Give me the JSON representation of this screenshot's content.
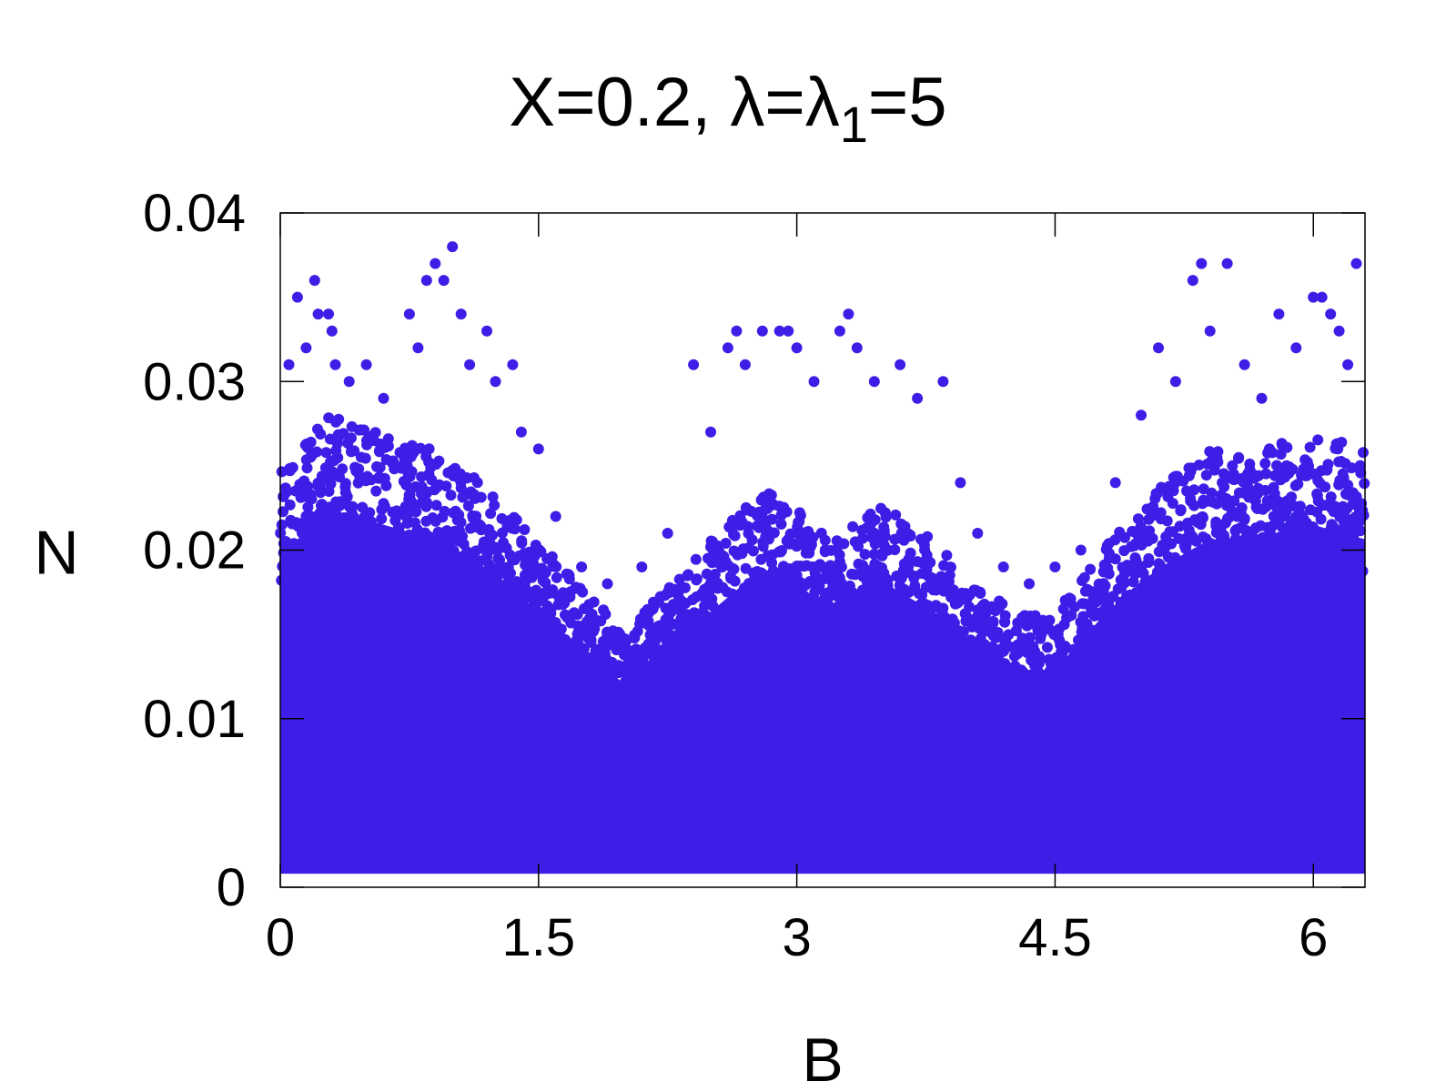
{
  "chart_data": {
    "type": "scatter",
    "title": {
      "prefix": "X=0.2, λ=λ",
      "subscript": "1",
      "suffix": "=5"
    },
    "xlabel": "B",
    "ylabel": "N",
    "xlim": [
      0,
      6.3
    ],
    "ylim": [
      0,
      0.04
    ],
    "xticks": [
      0,
      1.5,
      3,
      4.5,
      6
    ],
    "xtick_labels": [
      "0",
      "1.5",
      "3",
      "4.5",
      "6"
    ],
    "yticks": [
      0,
      0.01,
      0.02,
      0.03,
      0.04
    ],
    "ytick_labels": [
      "0",
      "0.01",
      "0.02",
      "0.03",
      "0.04"
    ],
    "grid": false,
    "legend": "none",
    "marker_color": "#3c1ee6",
    "series": [
      {
        "dense_envelope": {
          "x": [
            0,
            0.3,
            0.6,
            0.9,
            1.2,
            1.5,
            1.8,
            2.0,
            2.2,
            2.5,
            2.8,
            3.0,
            3.2,
            3.5,
            3.8,
            4.0,
            4.3,
            4.5,
            4.8,
            5.1,
            5.4,
            5.7,
            6.0,
            6.3
          ],
          "y_min": 0.0008,
          "y_max": [
            0.023,
            0.026,
            0.025,
            0.024,
            0.022,
            0.019,
            0.016,
            0.014,
            0.016,
            0.019,
            0.022,
            0.021,
            0.019,
            0.021,
            0.019,
            0.017,
            0.015,
            0.015,
            0.019,
            0.022,
            0.024,
            0.024,
            0.025,
            0.024
          ]
        },
        "outliers": {
          "x": [
            0.05,
            0.1,
            0.15,
            0.2,
            0.22,
            0.28,
            0.3,
            0.32,
            0.4,
            0.5,
            0.6,
            0.75,
            0.8,
            0.85,
            0.9,
            0.95,
            1.0,
            1.05,
            1.1,
            1.2,
            1.25,
            1.35,
            1.4,
            1.5,
            1.6,
            1.75,
            1.9,
            2.1,
            2.25,
            2.4,
            2.5,
            2.6,
            2.65,
            2.7,
            2.8,
            2.9,
            2.95,
            3.0,
            3.1,
            3.25,
            3.3,
            3.35,
            3.45,
            3.6,
            3.7,
            3.85,
            3.95,
            4.05,
            4.2,
            4.35,
            4.5,
            4.65,
            4.85,
            5.0,
            5.1,
            5.2,
            5.3,
            5.35,
            5.4,
            5.5,
            5.6,
            5.7,
            5.8,
            5.9,
            6.0,
            6.05,
            6.1,
            6.15,
            6.2,
            6.25
          ],
          "y": [
            0.031,
            0.035,
            0.032,
            0.036,
            0.034,
            0.034,
            0.033,
            0.031,
            0.03,
            0.031,
            0.029,
            0.034,
            0.032,
            0.036,
            0.037,
            0.036,
            0.038,
            0.034,
            0.031,
            0.033,
            0.03,
            0.031,
            0.027,
            0.026,
            0.022,
            0.019,
            0.018,
            0.019,
            0.021,
            0.031,
            0.027,
            0.032,
            0.033,
            0.031,
            0.033,
            0.033,
            0.033,
            0.032,
            0.03,
            0.033,
            0.034,
            0.032,
            0.03,
            0.031,
            0.029,
            0.03,
            0.024,
            0.021,
            0.019,
            0.018,
            0.019,
            0.02,
            0.024,
            0.028,
            0.032,
            0.03,
            0.036,
            0.037,
            0.033,
            0.037,
            0.031,
            0.029,
            0.034,
            0.032,
            0.035,
            0.035,
            0.034,
            0.033,
            0.031,
            0.037
          ]
        }
      }
    ]
  }
}
